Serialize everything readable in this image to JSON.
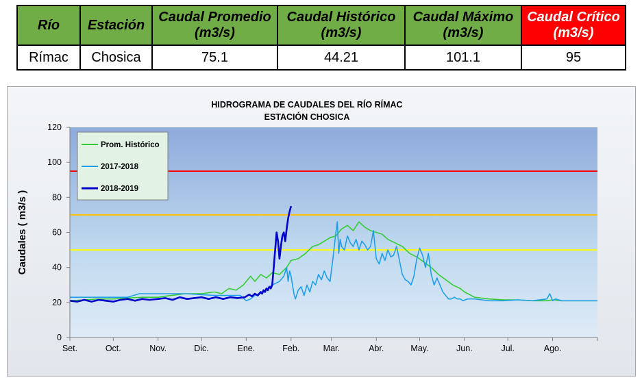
{
  "table": {
    "headers": [
      "Río",
      "Estación",
      "Caudal Promedio (m3/s)",
      "Caudal Histórico (m3/s)",
      "Caudal Máximo (m3/s)",
      "Caudal Crítico (m3/s)"
    ],
    "header_lines": [
      [
        "Río"
      ],
      [
        "Estación"
      ],
      [
        "Caudal Promedio",
        "(m3/s)"
      ],
      [
        "Caudal Histórico",
        "(m3/s)"
      ],
      [
        "Caudal Máximo",
        "(m3/s)"
      ],
      [
        "Caudal Crítico",
        "(m3/s)"
      ]
    ],
    "row": [
      "Rímac",
      "Chosica",
      "75.1",
      "44.21",
      "101.1",
      "95"
    ],
    "colors": {
      "header": "#70ad47",
      "critical": "#ff0000"
    }
  },
  "chart_data": {
    "type": "line",
    "title": [
      "HIDROGRAMA DE CAUDALES DEL RÍO RÍMAC",
      "ESTACIÓN CHOSICA"
    ],
    "ylabel": "Caudales ( m3/s )",
    "xlabel": "",
    "ylim": [
      0,
      120
    ],
    "yticks": [
      0,
      20,
      40,
      60,
      80,
      100,
      120
    ],
    "xlim": [
      0,
      365
    ],
    "month_labels": [
      "Set.",
      "Oct.",
      "Nov.",
      "Dic.",
      "Ene.",
      "Feb.",
      "Mar.",
      "Abr.",
      "May.",
      "Jun.",
      "Jul.",
      "Ago."
    ],
    "month_starts": [
      0,
      30,
      61,
      91,
      122,
      153,
      181,
      212,
      242,
      273,
      303,
      334
    ],
    "grid": false,
    "legend_position": "top-left",
    "reference_lines": [
      {
        "value": 95,
        "color": "#ff0000"
      },
      {
        "value": 70,
        "color": "#ffc000"
      },
      {
        "value": 50,
        "color": "#ffff00"
      }
    ],
    "series": [
      {
        "name": "Prom. Histórico",
        "color": "#33cc33",
        "x": [
          0,
          10,
          20,
          30,
          40,
          50,
          61,
          70,
          80,
          91,
          100,
          105,
          110,
          115,
          120,
          125,
          128,
          132,
          136,
          140,
          145,
          150,
          153,
          158,
          163,
          168,
          172,
          176,
          180,
          184,
          188,
          192,
          196,
          200,
          204,
          208,
          212,
          216,
          220,
          225,
          230,
          235,
          240,
          245,
          250,
          255,
          260,
          265,
          270,
          273,
          280,
          290,
          300,
          310,
          320,
          330,
          334,
          340,
          350,
          360,
          365
        ],
        "y": [
          21,
          21.5,
          22,
          22,
          22.5,
          23,
          23,
          24,
          25,
          25,
          26,
          25,
          28,
          27,
          30,
          35,
          32,
          36,
          34,
          37,
          36,
          40,
          44,
          45,
          48,
          52,
          53,
          55,
          57,
          58,
          62,
          64,
          61,
          66,
          63,
          61,
          60,
          59,
          56,
          54,
          52,
          48,
          46,
          43,
          40,
          36,
          33,
          30,
          28,
          26,
          23,
          22,
          21.5,
          21.5,
          21,
          21,
          21.5,
          21,
          21,
          21,
          21
        ]
      },
      {
        "name": "2017-2018",
        "color": "#1f9fe8",
        "x": [
          0,
          20,
          40,
          48,
          60,
          80,
          100,
          118,
          122,
          125,
          128,
          131,
          135,
          140,
          145,
          148,
          150,
          151,
          152,
          153,
          154,
          155,
          156,
          158,
          160,
          162,
          164,
          166,
          168,
          170,
          172,
          174,
          176,
          178,
          180,
          182,
          184,
          185,
          186,
          187,
          188,
          190,
          192,
          194,
          196,
          198,
          200,
          202,
          204,
          206,
          208,
          210,
          212,
          214,
          216,
          218,
          220,
          222,
          224,
          226,
          228,
          230,
          232,
          234,
          236,
          238,
          240,
          242,
          244,
          246,
          248,
          250,
          252,
          254,
          256,
          258,
          260,
          262,
          264,
          266,
          268,
          270,
          272,
          275,
          280,
          285,
          290,
          300,
          310,
          320,
          330,
          332,
          334,
          336,
          340,
          350,
          360,
          365
        ],
        "y": [
          23,
          23,
          23,
          25,
          25,
          25,
          24,
          24,
          21,
          22,
          24,
          25,
          27,
          30,
          32,
          35,
          40,
          32,
          38,
          35,
          30,
          25,
          22,
          27,
          29,
          24,
          30,
          26,
          32,
          30,
          36,
          33,
          38,
          34,
          32,
          45,
          60,
          66,
          48,
          56,
          52,
          50,
          58,
          54,
          52,
          56,
          50,
          55,
          53,
          50,
          52,
          61,
          45,
          42,
          48,
          44,
          50,
          46,
          47,
          52,
          44,
          36,
          33,
          32,
          30,
          35,
          45,
          51,
          47,
          40,
          48,
          36,
          30,
          34,
          30,
          26,
          24,
          22,
          22,
          23,
          22,
          22,
          21,
          22,
          22,
          21.5,
          21,
          21,
          21.5,
          21,
          22,
          25,
          21,
          22,
          21,
          21,
          21,
          21
        ]
      },
      {
        "name": "2018-2019",
        "color": "#0000cc",
        "x": [
          0,
          5,
          10,
          15,
          20,
          25,
          30,
          35,
          40,
          45,
          50,
          55,
          61,
          66,
          71,
          76,
          81,
          86,
          91,
          96,
          101,
          106,
          111,
          116,
          121,
          124,
          126,
          128,
          130,
          132,
          133,
          134,
          135,
          136,
          137,
          138,
          139,
          140,
          141,
          142,
          143,
          144,
          145,
          146,
          147,
          148,
          149,
          150,
          151,
          152,
          153
        ],
        "y": [
          21,
          20.5,
          21.5,
          20.5,
          21.5,
          21,
          20.5,
          21.5,
          22,
          21,
          22,
          21.5,
          22,
          22.5,
          21.5,
          23,
          22,
          22.5,
          23,
          22,
          23,
          22,
          23,
          22.5,
          23,
          24.5,
          23.5,
          25,
          24,
          26,
          25,
          27,
          26,
          28,
          27,
          29,
          28,
          30,
          40,
          50,
          60,
          55,
          45,
          52,
          58,
          60,
          55,
          62,
          68,
          72,
          75
        ]
      }
    ]
  }
}
